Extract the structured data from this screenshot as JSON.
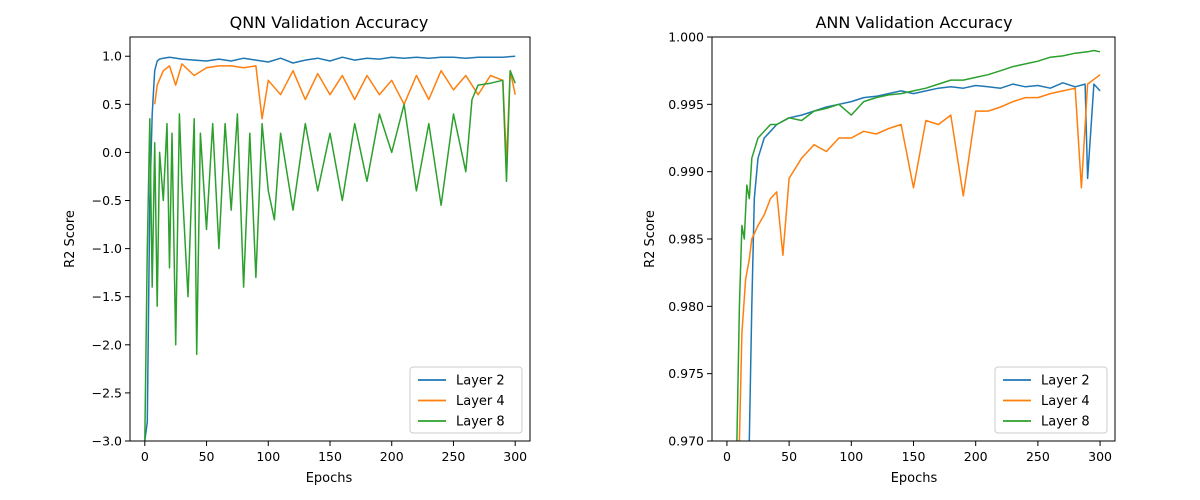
{
  "chart_data": [
    {
      "type": "line",
      "title": "QNN Validation Accuracy",
      "xlabel": "Epochs",
      "ylabel": "R2 Score",
      "xlim": [
        -12,
        312
      ],
      "ylim": [
        -3.0,
        1.2
      ],
      "xticks": [
        0,
        50,
        100,
        150,
        200,
        250,
        300
      ],
      "yticks": [
        -3.0,
        -2.5,
        -2.0,
        -1.5,
        -1.0,
        -0.5,
        0.0,
        0.5,
        1.0
      ],
      "ytick_labels": [
        "−3.0",
        "−2.5",
        "−2.0",
        "−1.5",
        "−1.0",
        "−0.5",
        "0.0",
        "0.5",
        "1.0"
      ],
      "grid": false,
      "legend_position": "lower-right",
      "series": [
        {
          "name": "Layer 2",
          "color": "#1f77b4",
          "x": [
            0,
            2,
            4,
            6,
            8,
            10,
            12,
            15,
            20,
            30,
            40,
            50,
            60,
            70,
            80,
            90,
            100,
            110,
            120,
            130,
            140,
            150,
            160,
            170,
            180,
            190,
            200,
            210,
            220,
            230,
            240,
            250,
            260,
            270,
            280,
            290,
            300
          ],
          "y": [
            -3.0,
            -2.8,
            -0.5,
            0.4,
            0.85,
            0.95,
            0.97,
            0.98,
            0.99,
            0.97,
            0.96,
            0.95,
            0.97,
            0.95,
            0.98,
            0.96,
            0.94,
            0.98,
            0.93,
            0.96,
            0.98,
            0.95,
            0.99,
            0.96,
            0.98,
            0.97,
            0.99,
            0.98,
            0.99,
            0.98,
            0.99,
            0.99,
            0.98,
            0.99,
            0.99,
            0.99,
            1.0
          ]
        },
        {
          "name": "Layer 4",
          "color": "#ff7f0e",
          "x": [
            8,
            10,
            15,
            20,
            25,
            30,
            40,
            50,
            60,
            70,
            80,
            90,
            95,
            100,
            110,
            120,
            130,
            140,
            150,
            160,
            170,
            180,
            190,
            200,
            210,
            220,
            230,
            240,
            250,
            260,
            270,
            280,
            290,
            293,
            296,
            300
          ],
          "y": [
            0.5,
            0.7,
            0.85,
            0.9,
            0.7,
            0.92,
            0.8,
            0.88,
            0.9,
            0.9,
            0.88,
            0.9,
            0.35,
            0.75,
            0.6,
            0.85,
            0.55,
            0.82,
            0.6,
            0.8,
            0.55,
            0.8,
            0.6,
            0.75,
            0.5,
            0.8,
            0.55,
            0.85,
            0.65,
            0.8,
            0.6,
            0.8,
            0.75,
            -0.1,
            0.85,
            0.6
          ]
        },
        {
          "name": "Layer 8",
          "color": "#2ca02c",
          "x": [
            0,
            2,
            4,
            6,
            8,
            10,
            12,
            15,
            18,
            20,
            22,
            25,
            28,
            30,
            35,
            40,
            42,
            45,
            50,
            55,
            60,
            65,
            70,
            75,
            80,
            85,
            90,
            95,
            100,
            105,
            110,
            120,
            130,
            140,
            150,
            160,
            170,
            180,
            190,
            200,
            210,
            220,
            230,
            240,
            250,
            260,
            265,
            270,
            280,
            290,
            293,
            296,
            300
          ],
          "y": [
            -3.0,
            -1.0,
            0.35,
            -1.4,
            0.1,
            -1.6,
            0.0,
            -0.5,
            0.3,
            -1.2,
            0.2,
            -2.0,
            0.4,
            -0.3,
            -1.5,
            0.35,
            -2.1,
            0.2,
            -0.8,
            0.3,
            -1.0,
            0.3,
            -0.6,
            0.4,
            -1.4,
            0.2,
            -1.3,
            0.3,
            -0.4,
            -0.7,
            0.2,
            -0.6,
            0.3,
            -0.4,
            0.2,
            -0.5,
            0.3,
            -0.3,
            0.4,
            0.0,
            0.5,
            -0.4,
            0.3,
            -0.55,
            0.4,
            -0.2,
            0.55,
            0.7,
            0.72,
            0.75,
            -0.3,
            0.85,
            0.72
          ]
        }
      ]
    },
    {
      "type": "line",
      "title": "ANN Validation Accuracy",
      "xlabel": "Epochs",
      "ylabel": "R2 Score",
      "xlim": [
        -12,
        312
      ],
      "ylim": [
        0.97,
        1.0
      ],
      "xticks": [
        0,
        50,
        100,
        150,
        200,
        250,
        300
      ],
      "yticks": [
        0.97,
        0.975,
        0.98,
        0.985,
        0.99,
        0.995,
        1.0
      ],
      "ytick_labels": [
        "0.970",
        "0.975",
        "0.980",
        "0.985",
        "0.990",
        "0.995",
        "1.000"
      ],
      "grid": false,
      "legend_position": "lower-right",
      "series": [
        {
          "name": "Layer 2",
          "color": "#1f77b4",
          "x": [
            18,
            20,
            22,
            25,
            30,
            35,
            40,
            50,
            60,
            70,
            80,
            90,
            100,
            110,
            120,
            130,
            140,
            150,
            160,
            170,
            180,
            190,
            200,
            210,
            220,
            230,
            240,
            250,
            260,
            270,
            280,
            288,
            290,
            295,
            300
          ],
          "y": [
            0.97,
            0.98,
            0.988,
            0.991,
            0.9925,
            0.993,
            0.9935,
            0.994,
            0.9942,
            0.9945,
            0.9948,
            0.995,
            0.9952,
            0.9955,
            0.9956,
            0.9958,
            0.996,
            0.9958,
            0.996,
            0.9962,
            0.9963,
            0.9962,
            0.9964,
            0.9963,
            0.9962,
            0.9965,
            0.9963,
            0.9964,
            0.9962,
            0.9966,
            0.9963,
            0.9965,
            0.9895,
            0.9965,
            0.996
          ]
        },
        {
          "name": "Layer 4",
          "color": "#ff7f0e",
          "x": [
            10,
            12,
            15,
            18,
            20,
            25,
            30,
            35,
            40,
            45,
            50,
            60,
            70,
            80,
            90,
            100,
            110,
            120,
            130,
            140,
            150,
            160,
            170,
            180,
            190,
            200,
            210,
            220,
            230,
            240,
            250,
            260,
            270,
            280,
            285,
            290,
            300
          ],
          "y": [
            0.97,
            0.978,
            0.982,
            0.9835,
            0.985,
            0.986,
            0.9868,
            0.988,
            0.9885,
            0.9838,
            0.9895,
            0.991,
            0.992,
            0.9915,
            0.9925,
            0.9925,
            0.993,
            0.9928,
            0.9932,
            0.9935,
            0.9888,
            0.9938,
            0.9935,
            0.9942,
            0.9882,
            0.9945,
            0.9945,
            0.9948,
            0.9952,
            0.9955,
            0.9955,
            0.9958,
            0.996,
            0.9962,
            0.9888,
            0.9965,
            0.9972
          ]
        },
        {
          "name": "Layer 8",
          "color": "#2ca02c",
          "x": [
            8,
            10,
            12,
            14,
            16,
            18,
            20,
            25,
            30,
            35,
            40,
            50,
            60,
            70,
            80,
            90,
            100,
            110,
            120,
            130,
            140,
            150,
            160,
            170,
            180,
            190,
            200,
            210,
            220,
            230,
            240,
            250,
            260,
            270,
            280,
            290,
            295,
            300
          ],
          "y": [
            0.97,
            0.98,
            0.986,
            0.985,
            0.989,
            0.988,
            0.991,
            0.9925,
            0.993,
            0.9935,
            0.9935,
            0.994,
            0.9938,
            0.9945,
            0.9947,
            0.995,
            0.9942,
            0.9952,
            0.9955,
            0.9957,
            0.9958,
            0.996,
            0.9962,
            0.9965,
            0.9968,
            0.9968,
            0.997,
            0.9972,
            0.9975,
            0.9978,
            0.998,
            0.9982,
            0.9985,
            0.9986,
            0.9988,
            0.9989,
            0.999,
            0.9989
          ]
        }
      ]
    }
  ]
}
